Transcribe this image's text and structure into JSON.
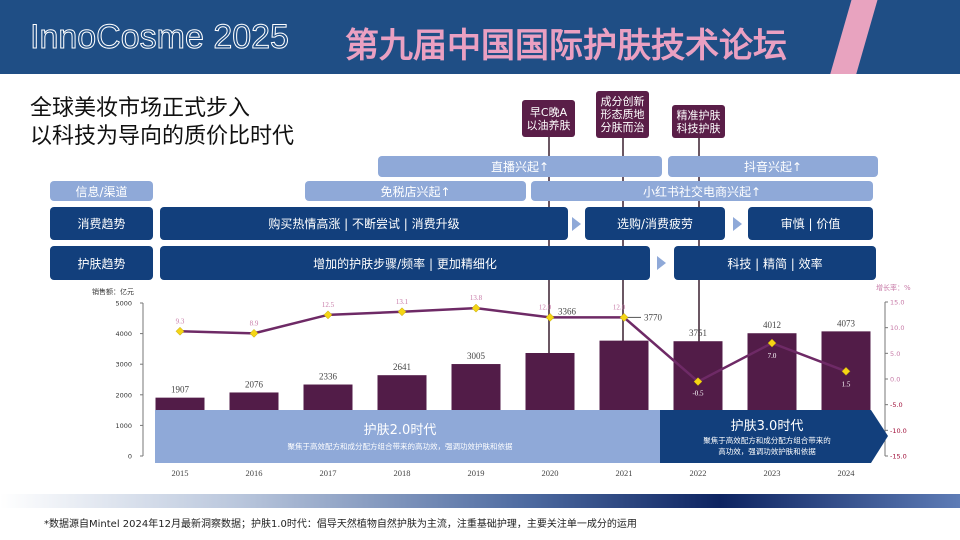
{
  "header": {
    "brand": "InnoCosme 2025",
    "title": "第九届中国国际护肤技术论坛"
  },
  "subtitle": [
    "全球美妆市场正式步入",
    "以科技为导向的质价比时代"
  ],
  "callouts": [
    "早C晚A\n以油养肤",
    "成分创新\n形态质地\n分肤而治",
    "精准护肤\n科技护肤"
  ],
  "channels": {
    "label": "信息/渠道",
    "items": [
      "直播兴起↑",
      "抖音兴起↑",
      "免税店兴起↑",
      "小红书社交电商兴起↑"
    ]
  },
  "consumption": {
    "label": "消费趋势",
    "items": [
      "购买热情高涨 | 不断尝试 | 消费升级",
      "选购/消费疲劳",
      "审慎 | 价值"
    ]
  },
  "skincare": {
    "label": "护肤趋势",
    "items": [
      "增加的护肤步骤/频率 | 更加精细化",
      "科技 | 精简 | 效率"
    ]
  },
  "eras": [
    {
      "title": "护肤2.0时代",
      "desc": "聚焦于高效配方和成分配方组合带来的高功效，强调功效护肤和依据"
    },
    {
      "title": "护肤3.0时代",
      "desc": "聚焦于高效配方和成分配方组合带来的\n高功效，强调功效护肤和依据"
    }
  ],
  "chart_data": {
    "type": "bar+line",
    "categories": [
      "2015",
      "2016",
      "2017",
      "2018",
      "2019",
      "2020",
      "2021",
      "2022",
      "2023",
      "2024"
    ],
    "series": [
      {
        "name": "销售额",
        "unit": "亿元",
        "type": "bar",
        "values": [
          1907,
          2076,
          2336,
          2641,
          3005,
          3366,
          3770,
          3751,
          4012,
          4073
        ]
      },
      {
        "name": "增长率",
        "unit": "%",
        "type": "line",
        "values": [
          9.3,
          8.9,
          12.5,
          13.1,
          13.8,
          12.0,
          12.0,
          -0.5,
          7.0,
          1.5
        ]
      }
    ],
    "ylabel": "销售额：亿元",
    "y2label": "增长率：%",
    "ylim": [
      0,
      5000
    ],
    "yticks": [
      "0",
      "1000",
      "2000",
      "3000",
      "4000",
      "5000"
    ],
    "y2lim": [
      -15,
      15
    ],
    "y2ticks": [
      "15.0",
      "10.0",
      "5.0",
      "0.0",
      "-5.0",
      "-10.0",
      "-15.0"
    ],
    "colors": {
      "bar": "#521c48",
      "line": "#6e2a66",
      "marker": "#f5d515"
    }
  },
  "footnote": "*数据源自Mintel 2024年12月最新洞察数据；护肤1.0时代：倡导天然植物自然护肤为主流，注重基础护理，主要关注单一成分的运用"
}
